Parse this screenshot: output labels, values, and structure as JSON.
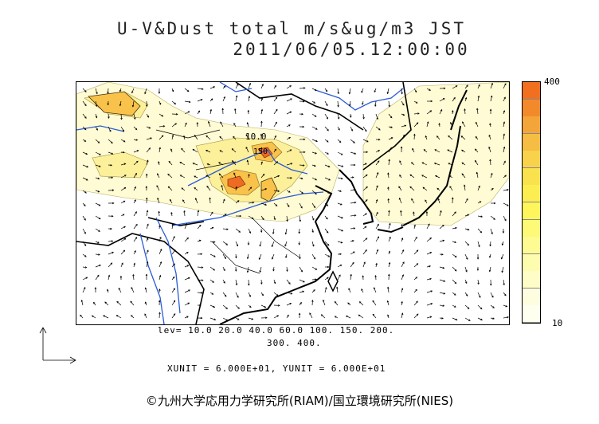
{
  "title": {
    "line1": "U-V&Dust total m/s&ug/m3 JST",
    "line2": "2011/06/05.12:00:00"
  },
  "colorbar": {
    "max_label": "400",
    "min_label": "10",
    "colors": [
      "#f07020",
      "#f28a2c",
      "#f4a53a",
      "#f6bd44",
      "#f8d24a",
      "#fae24e",
      "#fcee52",
      "#fef65a",
      "#fef976",
      "#fefb92",
      "#fefcae",
      "#fefdc8",
      "#fffde0",
      "#fffff0"
    ]
  },
  "levels": {
    "line1": "lev= 10.0 20.0 40.0 60.0 100. 150. 200.",
    "line2": "300. 400."
  },
  "units": "XUNIT = 6.000E+01, YUNIT = 6.000E+01",
  "credit": "©九州大学応用力学研究所(RIAM)/国立環境研究所(NIES)",
  "map_labels": {
    "contour_a": "10.0",
    "contour_b": "150"
  },
  "colors": {
    "dust_light": "#fffbd4",
    "dust_mid": "#fdf09a",
    "dust_high": "#f9c24a",
    "dust_peak": "#ef6a22",
    "river": "#2a5bd7",
    "coast": "#000000",
    "vector": "#000000"
  }
}
